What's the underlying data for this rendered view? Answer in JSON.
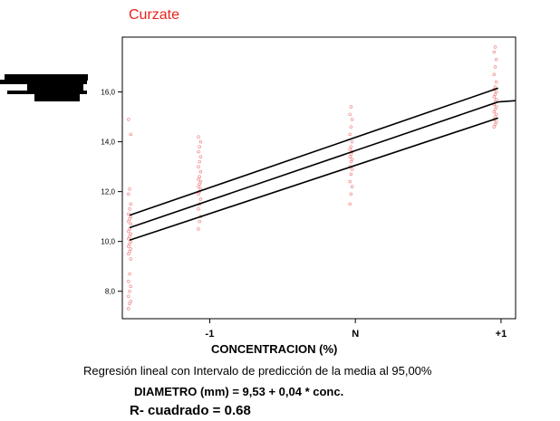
{
  "chart_data": {
    "type": "scatter",
    "title": "Curzate",
    "xlabel": "CONCENTRACION (%)",
    "ylabel": "",
    "x_tick_labels": [
      {
        "x": -1,
        "label": "-1"
      },
      {
        "x": 0,
        "label": "N"
      },
      {
        "x": 1,
        "label": "+1"
      }
    ],
    "y_tick_labels": [
      {
        "y": 8,
        "label": "8,0"
      },
      {
        "y": 10,
        "label": "10,0"
      },
      {
        "y": 12,
        "label": "12,0"
      },
      {
        "y": 14,
        "label": "14,0"
      },
      {
        "y": 16,
        "label": "16,0"
      }
    ],
    "xlim": [
      -1.6,
      1.1
    ],
    "ylim": [
      6.9,
      18.2
    ],
    "points": {
      "color": "#f08a8a",
      "groups": [
        {
          "x": -1.55,
          "y": [
            7.3,
            7.5,
            7.6,
            7.8,
            8.0,
            8.2,
            8.4,
            8.7,
            9.3,
            9.5,
            9.6,
            9.7,
            9.8,
            9.9,
            10.0,
            10.1,
            10.2,
            10.3,
            10.4,
            10.5,
            10.7,
            10.8,
            10.9,
            11.0,
            11.1,
            11.3,
            11.5,
            11.9,
            12.1,
            14.3,
            14.9
          ]
        },
        {
          "x": -1.07,
          "y": [
            10.5,
            10.8,
            11.0,
            11.3,
            11.5,
            11.7,
            11.9,
            12.0,
            12.1,
            12.2,
            12.3,
            12.4,
            12.5,
            12.6,
            12.8,
            13.0,
            13.2,
            13.4,
            13.6,
            13.8,
            14.0,
            14.2
          ]
        },
        {
          "x": -0.03,
          "y": [
            11.5,
            11.9,
            12.2,
            12.4,
            12.7,
            12.9,
            13.0,
            13.2,
            13.3,
            13.4,
            13.5,
            13.6,
            13.7,
            13.8,
            14.0,
            14.3,
            14.6,
            14.9,
            15.1,
            15.4
          ]
        },
        {
          "x": 0.96,
          "y": [
            14.6,
            14.7,
            14.8,
            14.9,
            15.0,
            15.1,
            15.2,
            15.3,
            15.4,
            15.5,
            15.6,
            15.7,
            15.8,
            15.9,
            16.0,
            16.1,
            16.2,
            16.4,
            16.7,
            17.0,
            17.3,
            17.6,
            17.8
          ]
        }
      ]
    },
    "lines": [
      {
        "name": "upper",
        "points": [
          [
            -1.55,
            11.05
          ],
          [
            0.98,
            16.15
          ]
        ]
      },
      {
        "name": "fit",
        "points": [
          [
            -1.55,
            10.55
          ],
          [
            0.98,
            15.6
          ],
          [
            1.1,
            15.65
          ]
        ]
      },
      {
        "name": "lower",
        "points": [
          [
            -1.55,
            10.05
          ],
          [
            0.98,
            14.95
          ]
        ]
      }
    ],
    "line_color": "#000000",
    "grid": false,
    "legend": "none"
  },
  "caption": "Regresión lineal con Intervalo de predicción de la media al 95,00%",
  "equation": "DIAMETRO (mm) = 9,53 + 0,04 * conc.",
  "r_squared": "R- cuadrado = 0.68",
  "colors": {
    "title": "#e8231c",
    "points": "#f08a8a",
    "lines": "#000000"
  }
}
